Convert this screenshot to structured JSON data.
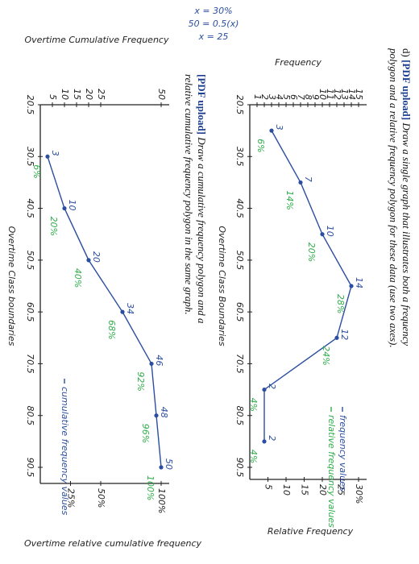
{
  "questions": [
    {
      "label": "d)",
      "tag": "[PDF upload]",
      "text": "Draw a single graph that illustrates both a frequency polygon and a relative frequency polygon for these data (use two axes)."
    },
    {
      "tag": "[PDF upload]",
      "text": "Draw a cumulative frequency polygon and a relative cumulative frequency polygon in the same graph."
    }
  ],
  "notes": [
    "x = 30%",
    "50 = 0.5(x)",
    "x = 25"
  ],
  "chart_data": [
    {
      "type": "line",
      "xlabel": "Overtime Class Boundaries",
      "ylabel": "Frequency",
      "y2label": "Relative Frequency",
      "x": [
        25.5,
        35.5,
        45.5,
        55.5,
        65.5,
        75.5,
        85.5
      ],
      "xlim": [
        20.5,
        90.5
      ],
      "xticks": [
        20.5,
        30.5,
        40.5,
        50.5,
        60.5,
        70.5,
        80.5,
        90.5
      ],
      "ylim": [
        0,
        15
      ],
      "yticks": [
        1,
        2,
        3,
        4,
        5,
        6,
        7,
        8,
        9,
        10,
        11,
        12,
        13,
        14,
        15
      ],
      "y2lim": [
        0,
        30
      ],
      "y2ticks": [
        5,
        10,
        15,
        20,
        25,
        {
          "value": 30,
          "label": "30%"
        }
      ],
      "series": [
        {
          "name": "frequency values",
          "color": "#2b4ea0",
          "values": [
            3,
            7,
            10,
            14,
            12,
            2,
            2
          ]
        },
        {
          "name": "relative frequency values",
          "color": "#2fae4a",
          "axis": "y2",
          "values": [
            6,
            14,
            20,
            28,
            24,
            4,
            4
          ],
          "value_labels": [
            "6%",
            "14%",
            "20%",
            "28%",
            "24%",
            "4%",
            "4%"
          ]
        }
      ]
    },
    {
      "type": "line",
      "xlabel": "Overtime Class boundaries",
      "ylabel": "Overtime Cumulative Frequency",
      "y2label": "Overtime relative cumulative frequency",
      "x": [
        30.5,
        40.5,
        50.5,
        60.5,
        70.5,
        80.5,
        90.5
      ],
      "xlim": [
        20.5,
        90.5
      ],
      "xticks": [
        20.5,
        30.5,
        40.5,
        50.5,
        60.5,
        70.5,
        80.5,
        90.5
      ],
      "ylim": [
        0,
        50
      ],
      "yticks": [
        5,
        10,
        15,
        20,
        25,
        50
      ],
      "y2lim": [
        0,
        100
      ],
      "y2ticks": [
        {
          "value": 25,
          "label": "25%"
        },
        {
          "value": 50,
          "label": "50%"
        },
        {
          "value": 100,
          "label": "100%"
        }
      ],
      "series": [
        {
          "name": "cumulative frequency values",
          "color": "#2b4ea0",
          "values": [
            3,
            10,
            20,
            34,
            46,
            48,
            50
          ]
        },
        {
          "color": "#2fae4a",
          "axis": "y2",
          "values": [
            6,
            20,
            40,
            68,
            92,
            96,
            100
          ],
          "value_labels": [
            "6%",
            "20%",
            "40%",
            "68%",
            "92%",
            "96%",
            "100%"
          ]
        }
      ]
    }
  ]
}
